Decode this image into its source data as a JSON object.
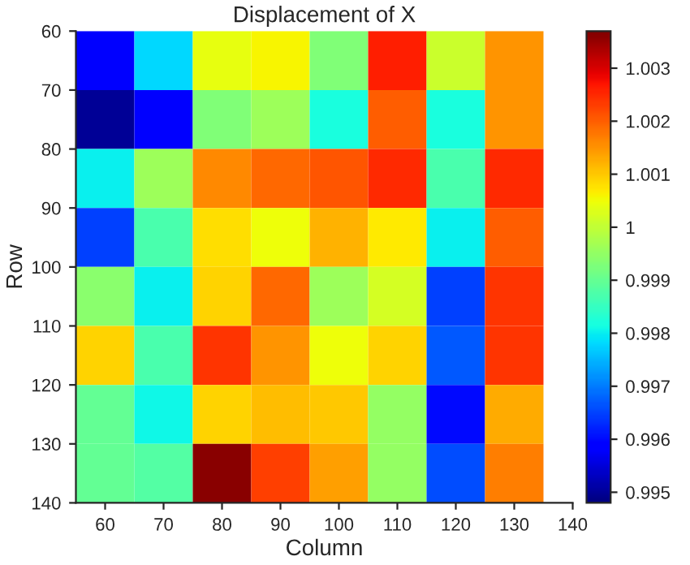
{
  "chart_data": {
    "type": "heatmap",
    "title": "Displacement of X",
    "xlabel": "Column",
    "ylabel": "Row",
    "x": [
      60,
      70,
      80,
      90,
      100,
      110,
      120,
      130
    ],
    "y": [
      65,
      75,
      85,
      95,
      105,
      115,
      125,
      135
    ],
    "xlim": [
      55,
      140
    ],
    "xticks": [
      60,
      70,
      80,
      90,
      100,
      110,
      120,
      130,
      140
    ],
    "ylim": [
      140,
      60
    ],
    "yticks": [
      60,
      70,
      80,
      90,
      100,
      110,
      120,
      130,
      140
    ],
    "cells": [
      [
        0.9958,
        0.9978,
        1.0004,
        1.0006,
        0.9993,
        1.0026,
        1.0001,
        1.0015
      ],
      [
        0.995,
        0.9958,
        0.9993,
        0.9996,
        0.9982,
        1.002,
        0.9982,
        1.0015
      ],
      [
        0.998,
        0.9996,
        1.0016,
        1.0019,
        1.0021,
        1.0025,
        0.9987,
        1.0025
      ],
      [
        0.9965,
        0.9987,
        1.0008,
        1.0005,
        1.0012,
        1.0007,
        0.998,
        1.002
      ],
      [
        0.9994,
        0.998,
        1.0009,
        1.0019,
        0.9996,
        1.0002,
        0.9965,
        1.0024
      ],
      [
        1.0009,
        0.9987,
        1.0024,
        1.0015,
        1.0005,
        1.0009,
        0.9967,
        1.0024
      ],
      [
        0.999,
        0.9981,
        1.0009,
        1.0011,
        1.001,
        0.9995,
        0.996,
        1.0013
      ],
      [
        0.999,
        0.9988,
        1.0036,
        1.0023,
        1.0014,
        0.9995,
        0.9966,
        1.0017
      ]
    ],
    "clim": [
      0.9948,
      1.0037
    ],
    "cticks": [
      0.995,
      0.996,
      0.997,
      0.998,
      0.999,
      1,
      1.001,
      1.002,
      1.003
    ],
    "grid": false
  }
}
